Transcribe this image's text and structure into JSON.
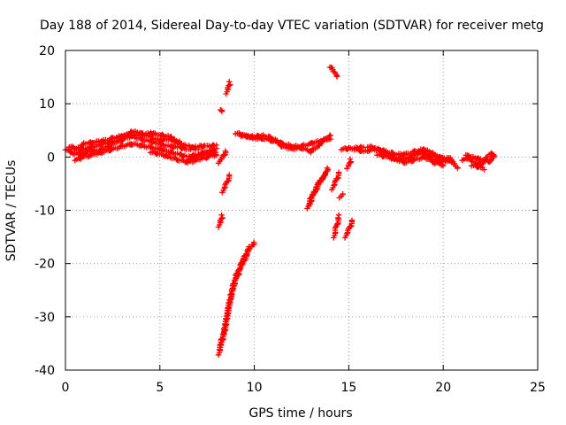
{
  "chart_data": {
    "type": "scatter",
    "title": "Day 188 of 2014, Sidereal Day-to-day VTEC variation (SDTVAR) for receiver metg",
    "xlabel": "GPS time / hours",
    "ylabel": "SDTVAR / TECUs",
    "xlim": [
      0,
      25
    ],
    "ylim": [
      -40,
      20
    ],
    "xticks": [
      0,
      5,
      10,
      15,
      20,
      25
    ],
    "yticks": [
      -40,
      -30,
      -20,
      -10,
      0,
      10,
      20
    ],
    "grid": true,
    "marker": "+",
    "color": "#ff0000",
    "series": [
      {
        "name": "SDTVAR",
        "tracks": [
          [
            [
              0.0,
              1.5
            ],
            [
              0.5,
              0.5
            ],
            [
              1.0,
              1.5
            ],
            [
              1.5,
              2.0
            ],
            [
              2.0,
              2.5
            ],
            [
              2.5,
              2.8
            ],
            [
              3.0,
              3.2
            ],
            [
              3.5,
              4.0
            ],
            [
              4.0,
              3.3
            ],
            [
              4.5,
              3.0
            ],
            [
              5.0,
              2.5
            ],
            [
              5.5,
              2.0
            ],
            [
              6.0,
              1.8
            ],
            [
              6.5,
              1.5
            ],
            [
              7.0,
              2.0
            ],
            [
              7.5,
              2.0
            ],
            [
              8.0,
              2.2
            ]
          ],
          [
            [
              0.5,
              -0.5
            ],
            [
              1.0,
              0.0
            ],
            [
              1.5,
              0.5
            ],
            [
              2.0,
              1.0
            ],
            [
              2.5,
              1.5
            ],
            [
              3.0,
              2.0
            ],
            [
              3.5,
              2.5
            ],
            [
              4.0,
              2.2
            ],
            [
              4.5,
              1.8
            ],
            [
              5.0,
              1.5
            ],
            [
              5.5,
              1.0
            ],
            [
              6.0,
              0.5
            ],
            [
              6.5,
              0.0
            ],
            [
              7.0,
              0.5
            ],
            [
              7.5,
              1.0
            ],
            [
              8.0,
              1.5
            ]
          ],
          [
            [
              0.8,
              0.5
            ],
            [
              1.2,
              1.0
            ],
            [
              1.6,
              1.2
            ],
            [
              2.0,
              1.5
            ],
            [
              2.5,
              2.5
            ],
            [
              3.0,
              3.5
            ],
            [
              3.5,
              4.8
            ],
            [
              4.0,
              4.5
            ],
            [
              4.5,
              3.8
            ],
            [
              5.0,
              3.0
            ],
            [
              5.5,
              3.5
            ],
            [
              6.0,
              2.5
            ],
            [
              6.5,
              2.0
            ],
            [
              7.0,
              1.5
            ]
          ],
          [
            [
              0.2,
              2.0
            ],
            [
              0.6,
              1.5
            ],
            [
              1.0,
              2.5
            ],
            [
              1.5,
              2.8
            ],
            [
              2.0,
              3.0
            ],
            [
              2.5,
              3.5
            ],
            [
              3.0,
              4.0
            ],
            [
              3.5,
              4.2
            ],
            [
              4.0,
              4.0
            ],
            [
              4.5,
              4.5
            ],
            [
              5.0,
              4.2
            ],
            [
              5.5,
              3.8
            ],
            [
              6.0,
              2.8
            ]
          ],
          [
            [
              4.5,
              1.0
            ],
            [
              5.0,
              0.5
            ],
            [
              5.5,
              0.0
            ],
            [
              6.0,
              -0.5
            ],
            [
              6.5,
              -1.0
            ],
            [
              7.0,
              -0.5
            ],
            [
              7.5,
              0.0
            ],
            [
              8.0,
              0.5
            ]
          ],
          [
            [
              6.5,
              -0.5
            ],
            [
              7.0,
              0.2
            ],
            [
              7.5,
              0.8
            ],
            [
              8.0,
              1.0
            ]
          ],
          [
            [
              8.1,
              -37.0
            ],
            [
              8.4,
              -33.0
            ],
            [
              8.7,
              -27.0
            ],
            [
              9.0,
              -23.0
            ],
            [
              9.4,
              -20.0
            ],
            [
              9.7,
              -17.5
            ],
            [
              10.0,
              -16.0
            ]
          ],
          [
            [
              8.15,
              -36.0
            ],
            [
              8.45,
              -32.0
            ],
            [
              8.75,
              -26.0
            ],
            [
              9.05,
              -22.0
            ],
            [
              9.45,
              -19.0
            ],
            [
              9.75,
              -17.0
            ]
          ],
          [
            [
              8.1,
              -13.0
            ],
            [
              8.2,
              -12.0
            ],
            [
              8.3,
              -11.0
            ]
          ],
          [
            [
              8.3,
              -6.5
            ],
            [
              8.5,
              -5.0
            ],
            [
              8.7,
              -3.5
            ]
          ],
          [
            [
              8.1,
              -1.0
            ],
            [
              8.3,
              0.0
            ],
            [
              8.5,
              1.0
            ]
          ],
          [
            [
              8.2,
              9.0
            ],
            [
              8.3,
              8.5
            ]
          ],
          [
            [
              8.5,
              12.0
            ],
            [
              8.6,
              13.0
            ],
            [
              8.7,
              14.0
            ]
          ],
          [
            [
              9.0,
              4.5
            ],
            [
              9.5,
              4.0
            ],
            [
              10.0,
              3.5
            ],
            [
              10.5,
              3.5
            ],
            [
              11.0,
              3.0
            ],
            [
              11.5,
              2.5
            ],
            [
              12.0,
              2.0
            ],
            [
              12.5,
              2.0
            ],
            [
              13.0,
              2.5
            ],
            [
              13.5,
              3.0
            ],
            [
              14.0,
              3.5
            ]
          ],
          [
            [
              9.3,
              4.0
            ],
            [
              9.8,
              3.8
            ],
            [
              10.5,
              4.0
            ],
            [
              11.0,
              3.5
            ],
            [
              11.5,
              2.0
            ],
            [
              12.0,
              1.5
            ],
            [
              12.5,
              1.8
            ],
            [
              13.0,
              1.0
            ],
            [
              13.5,
              2.5
            ],
            [
              14.0,
              4.0
            ]
          ],
          [
            [
              12.8,
              -9.5
            ],
            [
              13.1,
              -7.0
            ],
            [
              13.4,
              -5.0
            ],
            [
              13.7,
              -3.5
            ],
            [
              13.9,
              -2.0
            ]
          ],
          [
            [
              12.9,
              -9.0
            ],
            [
              13.2,
              -6.5
            ],
            [
              13.5,
              -4.5
            ],
            [
              13.8,
              -3.0
            ]
          ],
          [
            [
              14.1,
              -6.0
            ],
            [
              14.3,
              -4.5
            ],
            [
              14.5,
              -3.0
            ]
          ],
          [
            [
              14.5,
              -7.5
            ],
            [
              14.7,
              -7.0
            ]
          ],
          [
            [
              14.2,
              -15.0
            ],
            [
              14.35,
              -13.0
            ],
            [
              14.5,
              -11.0
            ]
          ],
          [
            [
              14.8,
              -15.0
            ],
            [
              15.0,
              -13.5
            ],
            [
              15.2,
              -12.0
            ]
          ],
          [
            [
              14.0,
              17.0
            ],
            [
              14.2,
              16.0
            ],
            [
              14.4,
              15.0
            ]
          ],
          [
            [
              14.6,
              1.5
            ],
            [
              15.8,
              1.8
            ]
          ],
          [
            [
              14.9,
              -2.0
            ],
            [
              15.0,
              -1.5
            ],
            [
              15.1,
              -0.5
            ]
          ],
          [
            [
              15.3,
              1.5
            ],
            [
              15.8,
              1.0
            ],
            [
              16.3,
              1.5
            ],
            [
              16.8,
              1.0
            ],
            [
              17.3,
              0.0
            ],
            [
              17.8,
              -0.5
            ],
            [
              18.3,
              0.0
            ],
            [
              18.8,
              1.0
            ],
            [
              19.3,
              0.5
            ],
            [
              19.8,
              0.0
            ],
            [
              20.3,
              -0.5
            ]
          ],
          [
            [
              16.0,
              2.0
            ],
            [
              16.5,
              1.5
            ],
            [
              17.0,
              1.0
            ],
            [
              17.5,
              0.5
            ],
            [
              18.0,
              0.5
            ],
            [
              18.5,
              1.0
            ],
            [
              19.0,
              1.5
            ],
            [
              19.5,
              0.5
            ],
            [
              20.0,
              -0.5
            ],
            [
              20.5,
              -1.0
            ]
          ],
          [
            [
              16.5,
              0.5
            ],
            [
              17.0,
              0.0
            ],
            [
              17.5,
              -0.5
            ],
            [
              18.0,
              -1.0
            ],
            [
              18.5,
              -0.5
            ],
            [
              19.0,
              0.0
            ],
            [
              19.5,
              -1.0
            ],
            [
              20.0,
              -1.5
            ]
          ],
          [
            [
              19.0,
              0.5
            ],
            [
              19.5,
              -0.5
            ],
            [
              20.0,
              -1.0
            ]
          ],
          [
            [
              20.2,
              0.0
            ],
            [
              20.4,
              -0.5
            ],
            [
              20.6,
              -1.5
            ],
            [
              20.8,
              -2.0
            ]
          ],
          [
            [
              21.0,
              -0.5
            ],
            [
              21.5,
              0.0
            ],
            [
              22.0,
              -0.5
            ],
            [
              22.5,
              -0.8
            ],
            [
              22.7,
              0.5
            ]
          ],
          [
            [
              21.2,
              0.5
            ],
            [
              21.6,
              -1.0
            ],
            [
              22.0,
              -1.5
            ],
            [
              22.3,
              0.0
            ],
            [
              22.6,
              0.8
            ]
          ],
          [
            [
              21.5,
              -1.5
            ],
            [
              22.0,
              -2.0
            ],
            [
              22.2,
              -2.5
            ]
          ]
        ]
      }
    ]
  }
}
